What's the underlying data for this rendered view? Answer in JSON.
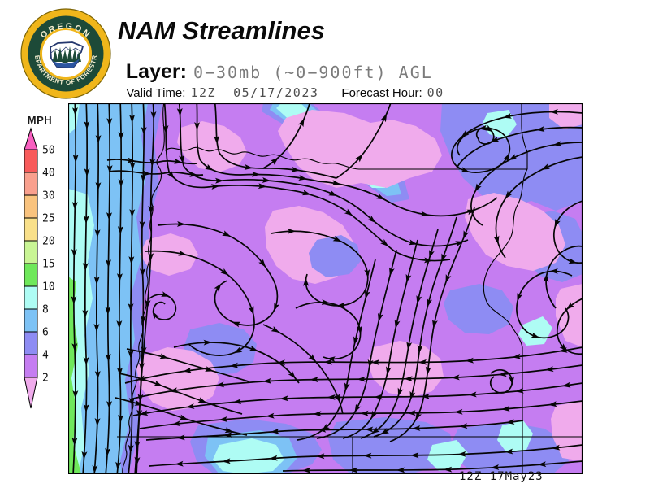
{
  "header": {
    "title": "NAM Streamlines",
    "layer_label": "Layer:",
    "layer_value": "0−30mb (~0−900ft) AGL",
    "valid_label": "Valid Time:",
    "valid_value": "12Z  05/17/2023",
    "forecast_label": "Forecast Hour:",
    "forecast_value": "00"
  },
  "logo": {
    "top_text": "OREGON",
    "bottom_text": "DEPARTMENT OF FORESTRY",
    "ring_color": "#1d4a38",
    "gold_color": "#f0b61b"
  },
  "legend": {
    "title": "MPH",
    "ticks": [
      "50",
      "40",
      "30",
      "25",
      "20",
      "15",
      "10",
      "8",
      "6",
      "4",
      "2"
    ],
    "segment_colors": [
      "#f85b5b",
      "#f9a08e",
      "#f9c37e",
      "#f9e08a",
      "#c9f595",
      "#6fe85b",
      "#aefcf4",
      "#7dc2f5",
      "#8e8cf3",
      "#c57df1"
    ],
    "tip_top_color": "#f85fc0",
    "tip_bottom_color": "#f0abec"
  },
  "map": {
    "stamp": "12Z 17May23",
    "stream_color": "#060606",
    "boundary_color": "#000000",
    "speed_colors": {
      "lt2": "#f0abec",
      "s2_4": "#c57df1",
      "s4_6": "#8e8cf3",
      "s6_8": "#7dc2f5",
      "s8_10": "#aefcf4",
      "s10_15": "#6fe85b"
    }
  }
}
